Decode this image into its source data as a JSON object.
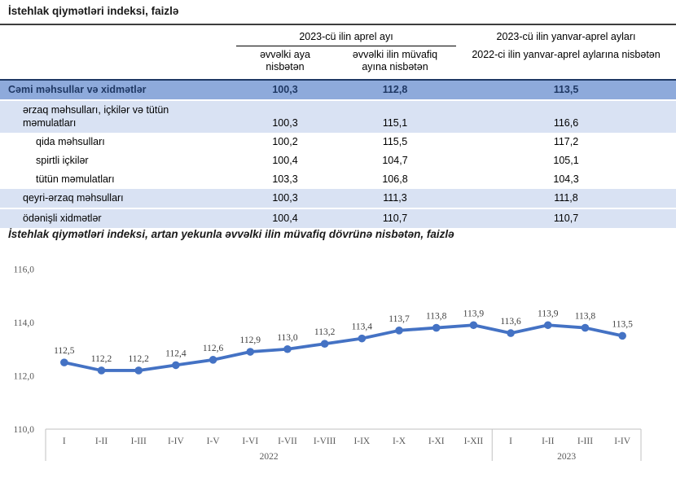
{
  "page": {
    "table_title": "İstehlak qiymətləri indeksi, faizlə",
    "chart_title": "İstehlak qiymətləri indeksi, artan yekunla əvvəlki ilin müvafiq dövrünə nisbətən, faizlə"
  },
  "table": {
    "header": {
      "april_group": "2023-cü ilin aprel ayı",
      "prev_month": "əvvəlki aya nisbətən",
      "prev_year_month": "əvvəlki ilin müvafiq ayına nisbətən",
      "jan_apr_line1": "2023-cü ilin yanvar-aprel ayları",
      "jan_apr_line2": "2022-ci ilin yanvar-aprel aylarına nisbətən"
    },
    "rows": [
      {
        "label": "Cəmi məhsullar və xidmətlər",
        "values": [
          "100,3",
          "112,8",
          "113,5"
        ],
        "style": "total"
      },
      {
        "label": "ərzaq məhsulları, içkilər və tütün məmulatları",
        "values": [
          "100,3",
          "115,1",
          "116,6"
        ],
        "style": "group"
      },
      {
        "label": "qida məhsulları",
        "values": [
          "100,2",
          "115,5",
          "117,2"
        ],
        "style": "sub"
      },
      {
        "label": "spirtli içkilər",
        "values": [
          "100,4",
          "104,7",
          "105,1"
        ],
        "style": "sub"
      },
      {
        "label": "tütün məmulatları",
        "values": [
          "103,3",
          "106,8",
          "104,3"
        ],
        "style": "sub"
      },
      {
        "label": "qeyri-ərzaq məhsulları",
        "values": [
          "100,3",
          "111,3",
          "111,8"
        ],
        "style": "group2"
      },
      {
        "label": "ödənişli xidmətlər",
        "values": [
          "100,4",
          "110,7",
          "110,7"
        ],
        "style": "group2"
      }
    ]
  },
  "chart_data": {
    "type": "line",
    "title": "İstehlak qiymətləri indeksi, artan yekunla əvvəlki ilin müvafiq dövrünə nisbətən, faizlə",
    "categories": [
      "I",
      "I-II",
      "I-III",
      "I-IV",
      "I-V",
      "I-VI",
      "I-VII",
      "I-VIII",
      "I-IX",
      "I-X",
      "I-XI",
      "I-XII",
      "I",
      "I-II",
      "I-III",
      "I-IV"
    ],
    "values": [
      112.5,
      112.2,
      112.2,
      112.4,
      112.6,
      112.9,
      113.0,
      113.2,
      113.4,
      113.7,
      113.8,
      113.9,
      113.6,
      113.9,
      113.8,
      113.5
    ],
    "point_labels": [
      "112,5",
      "112,2",
      "112,2",
      "112,4",
      "112,6",
      "112,9",
      "113,0",
      "113,2",
      "113,4",
      "113,7",
      "113,8",
      "113,9",
      "113,6",
      "113,9",
      "113,8",
      "113,5"
    ],
    "year_groups": [
      {
        "label": "2022",
        "count": 12
      },
      {
        "label": "2023",
        "count": 4
      }
    ],
    "y_ticks": [
      {
        "label": "116,0",
        "value": 116
      },
      {
        "label": "114,0",
        "value": 114
      },
      {
        "label": "112,0",
        "value": 112
      },
      {
        "label": "110,0",
        "value": 110
      }
    ],
    "ylim": [
      110,
      116
    ],
    "xlabel": "",
    "ylabel": "",
    "grid": false,
    "legend": "none",
    "line_color": "#4472C4",
    "axis_line_color": "#C0C0C0",
    "tick_text_color": "#595959",
    "data_label_color": "#404040"
  }
}
